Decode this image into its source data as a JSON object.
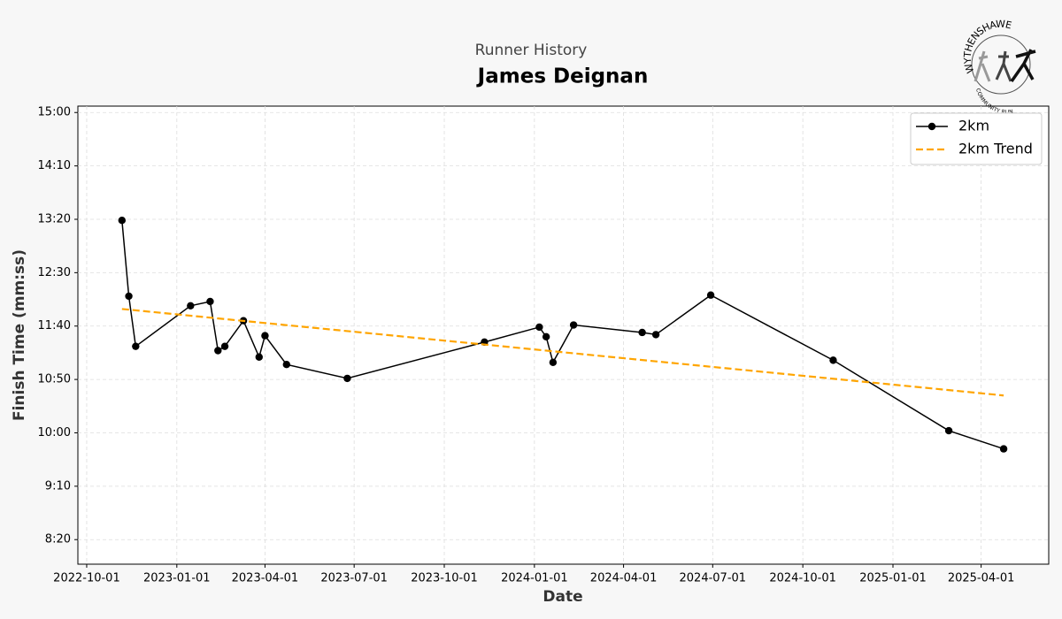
{
  "chart_data": {
    "type": "line",
    "subtitle": "Runner History",
    "title": "James Deignan",
    "xlabel": "Date",
    "ylabel": "Finish Time (mm:ss)",
    "logo": {
      "top_text": "WYTHENSHAWE",
      "bottom_text": "COMMUNITY RUN"
    },
    "x": [
      "2022-11-06",
      "2022-11-13",
      "2022-11-20",
      "2023-01-15",
      "2023-02-04",
      "2023-02-12",
      "2023-02-19",
      "2023-03-10",
      "2023-03-26",
      "2023-04-01",
      "2023-04-23",
      "2023-06-24",
      "2023-11-11",
      "2024-01-06",
      "2024-01-13",
      "2024-01-20",
      "2024-02-10",
      "2024-04-20",
      "2024-05-04",
      "2024-06-29",
      "2024-11-01",
      "2025-02-27",
      "2025-04-24"
    ],
    "series": [
      {
        "name": "2km",
        "color": "#000000",
        "marker": true,
        "dashed": false,
        "values": [
          799,
          728,
          681,
          719,
          723,
          677,
          681,
          705,
          671,
          691,
          664,
          651,
          685,
          699,
          690,
          666,
          701,
          694,
          692,
          729,
          668,
          602,
          585
        ]
      },
      {
        "name": "2km Trend",
        "color": "#ffa500",
        "marker": false,
        "dashed": true,
        "x": [
          "2022-11-06",
          "2025-04-24"
        ],
        "values": [
          716,
          635
        ]
      }
    ],
    "xlim": [
      "2022-09-22",
      "2025-06-09"
    ],
    "xticks": [
      "2022-10-01",
      "2023-01-01",
      "2023-04-01",
      "2023-07-01",
      "2023-10-01",
      "2024-01-01",
      "2024-04-01",
      "2024-07-01",
      "2024-10-01",
      "2025-01-01",
      "2025-04-01"
    ],
    "ylim": [
      477,
      906
    ],
    "yticks": [
      {
        "value": 500,
        "label": "8:20"
      },
      {
        "value": 550,
        "label": "9:10"
      },
      {
        "value": 600,
        "label": "10:00"
      },
      {
        "value": 650,
        "label": "10:50"
      },
      {
        "value": 700,
        "label": "11:40"
      },
      {
        "value": 750,
        "label": "12:30"
      },
      {
        "value": 800,
        "label": "13:20"
      },
      {
        "value": 850,
        "label": "14:10"
      },
      {
        "value": 900,
        "label": "15:00"
      }
    ],
    "grid": true,
    "legend": "upper right"
  }
}
